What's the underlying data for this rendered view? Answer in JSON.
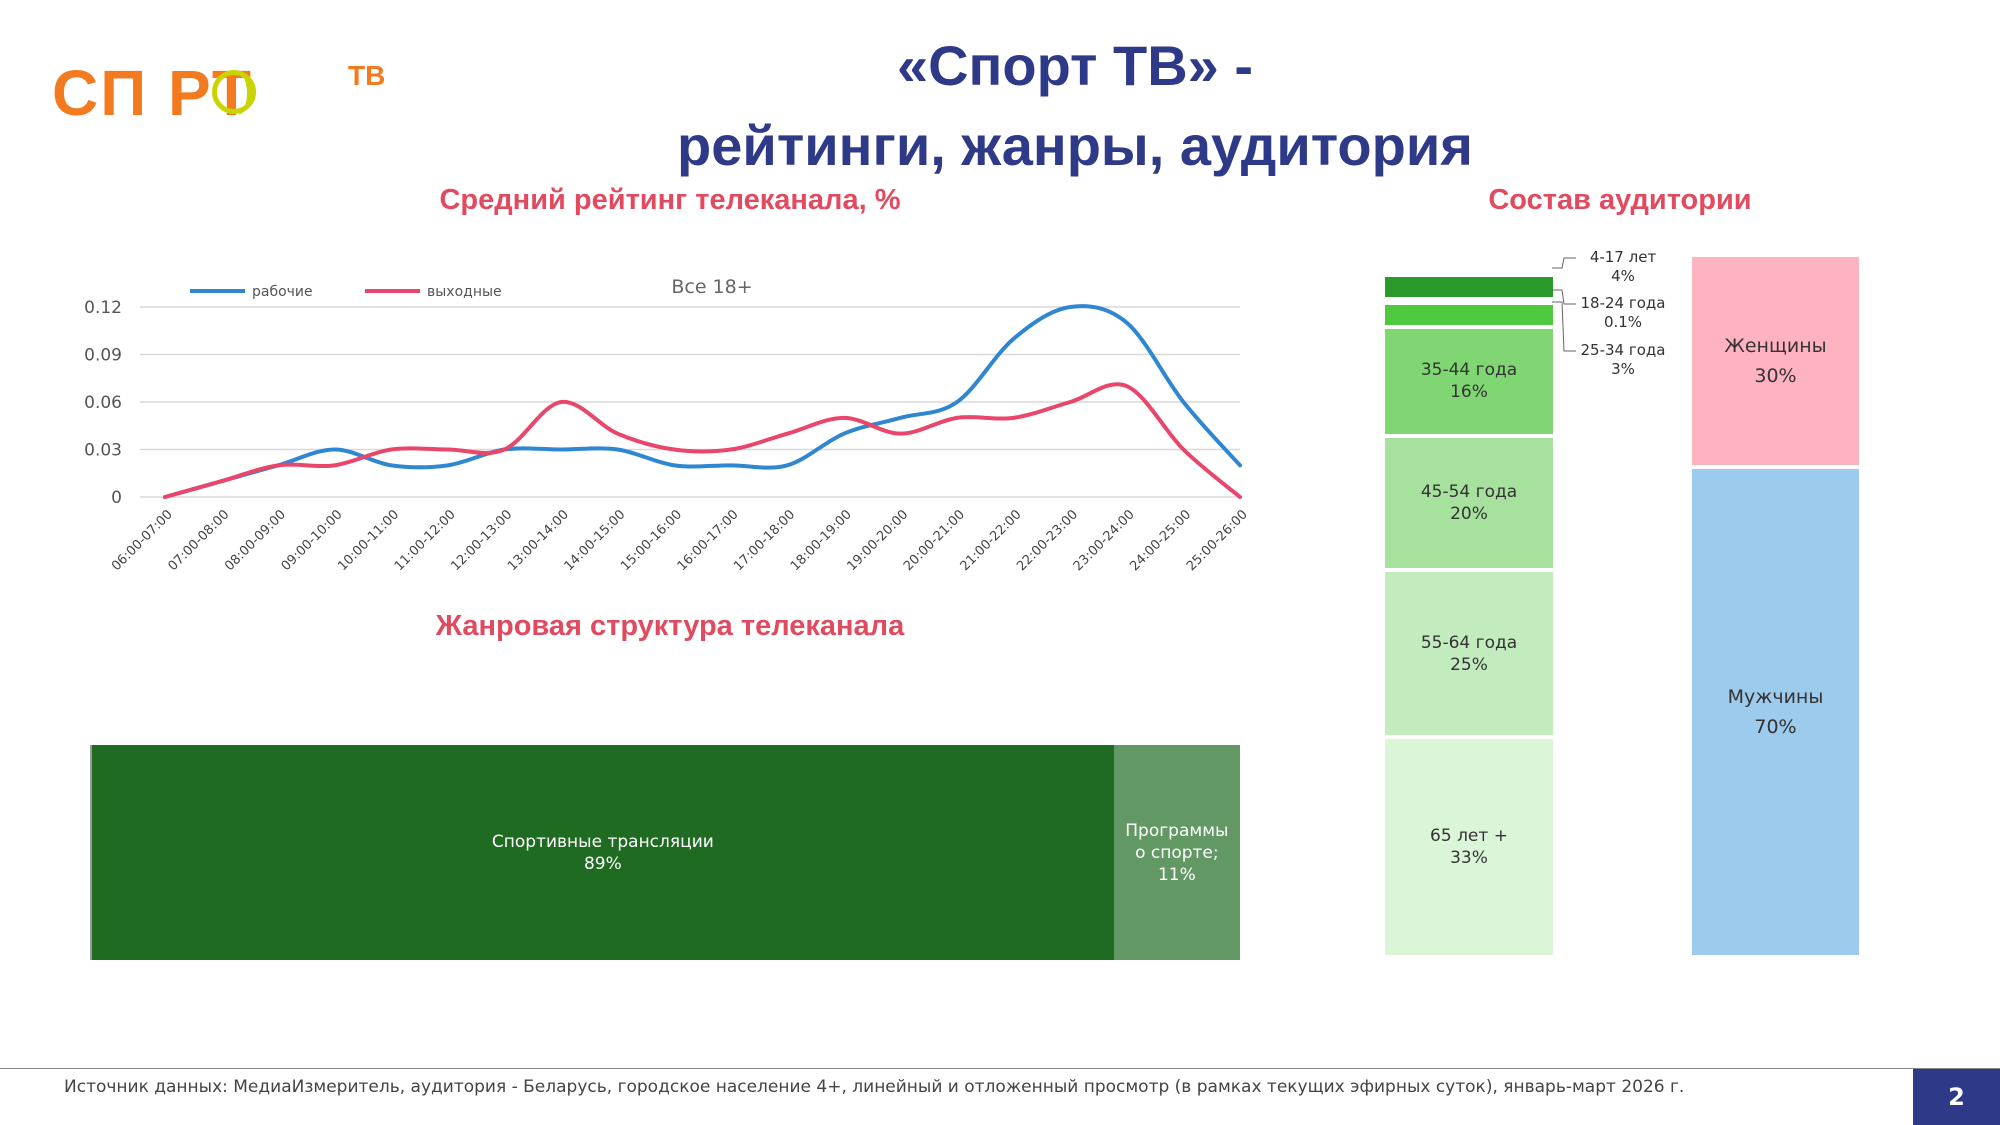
{
  "logo": {
    "text": "СП  РТ",
    "superscript": "ТВ",
    "colors": {
      "brand": "#f47a20",
      "ball": "#c9d400"
    }
  },
  "title": {
    "line1": "«Спорт ТВ» -",
    "line2": "рейтинги, жанры, аудитория"
  },
  "sections": {
    "rating": "Средний рейтинг телеканала, %",
    "genre": "Жанровая структура телеканала",
    "audience": "Состав аудитории"
  },
  "chart_data": [
    {
      "type": "line",
      "title": "Все 18+",
      "categories": [
        "06:00-07:00",
        "07:00-08:00",
        "08:00-09:00",
        "09:00-10:00",
        "10:00-11:00",
        "11:00-12:00",
        "12:00-13:00",
        "13:00-14:00",
        "14:00-15:00",
        "15:00-16:00",
        "16:00-17:00",
        "17:00-18:00",
        "18:00-19:00",
        "19:00-20:00",
        "20:00-21:00",
        "21:00-22:00",
        "22:00-23:00",
        "23:00-24:00",
        "24:00-25:00",
        "25:00-26:00"
      ],
      "ylim": [
        0,
        0.12
      ],
      "yticks": [
        "0",
        "0.03",
        "0.06",
        "0.09",
        "0.12"
      ],
      "grid": true,
      "legend_position": "top-left",
      "series": [
        {
          "name": "рабочие",
          "color": "#2f86d1",
          "values": [
            0,
            0.01,
            0.02,
            0.03,
            0.02,
            0.02,
            0.03,
            0.03,
            0.03,
            0.02,
            0.02,
            0.02,
            0.04,
            0.05,
            0.06,
            0.1,
            0.12,
            0.11,
            0.06,
            0.02
          ]
        },
        {
          "name": "выходные",
          "color": "#e8466a",
          "values": [
            0,
            0.01,
            0.02,
            0.02,
            0.03,
            0.03,
            0.03,
            0.06,
            0.04,
            0.03,
            0.03,
            0.04,
            0.05,
            0.04,
            0.05,
            0.05,
            0.06,
            0.07,
            0.03,
            0
          ]
        }
      ]
    },
    {
      "type": "bar",
      "stacked": true,
      "orientation": "horizontal",
      "segments": [
        {
          "name": "Спортивные трансляции",
          "value_label": "89%",
          "value": 89,
          "color": "#1f6b22"
        },
        {
          "name": "Программы о спорте",
          "value_label": "11%",
          "value": 11,
          "color": "#629863"
        }
      ],
      "text": {
        "seg1_line1": "Спортивные трансляции",
        "seg1_line2": "89%",
        "seg2_line1": "Программы",
        "seg2_line2": "о спорте; 11%"
      }
    },
    {
      "type": "bar",
      "stacked": true,
      "orientation": "vertical",
      "name": "age",
      "segments": [
        {
          "label": "65 лет +",
          "pct": "33%",
          "value": 33,
          "color": "#dbf5d9"
        },
        {
          "label": "55-64 года",
          "pct": "25%",
          "value": 25,
          "color": "#c3ecbe"
        },
        {
          "label": "45-54 года",
          "pct": "20%",
          "value": 20,
          "color": "#a6e29e"
        },
        {
          "label": "35-44 года",
          "pct": "16%",
          "value": 16,
          "color": "#7fd673"
        },
        {
          "label": "25-34 года",
          "pct": "3%",
          "value": 3,
          "color": "#4ec940"
        },
        {
          "label": "18-24 года",
          "pct": "0.1%",
          "value": 0.1,
          "color": "#3cb036"
        },
        {
          "label": "4-17 лет",
          "pct": "4%",
          "value": 4,
          "color": "#2a9a2a"
        }
      ]
    },
    {
      "type": "bar",
      "stacked": true,
      "orientation": "vertical",
      "name": "gender",
      "segments": [
        {
          "label": "Мужчины",
          "pct": "70%",
          "value": 70,
          "color": "#9ccbee"
        },
        {
          "label": "Женщины",
          "pct": "30%",
          "value": 30,
          "color": "#ffb3c0"
        }
      ]
    }
  ],
  "footer": {
    "source": "Источник данных: МедиаИзмеритель, аудитория - Беларусь, городское население 4+, линейный и отложенный просмотр (в рамках текущих эфирных суток), январь-март 2026 г.",
    "page": "2"
  },
  "colors": {
    "title": "#2e3a87",
    "section": "#e14a5f",
    "page_bg": "#2e3a87"
  }
}
